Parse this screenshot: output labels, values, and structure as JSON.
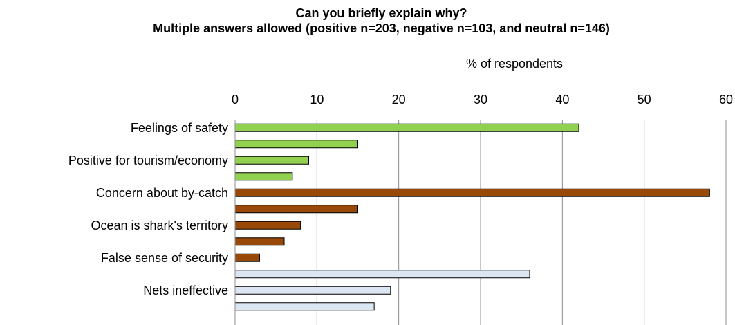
{
  "chart_data": {
    "type": "bar",
    "orientation": "horizontal",
    "title": "Can you briefly explain why?",
    "subtitle": "Multiple answers allowed (positive n=203, negative n=103, and neutral n=146)",
    "xlabel": "% of respondents",
    "xlim": [
      0,
      60
    ],
    "x_ticks": [
      "0",
      "10",
      "20",
      "30",
      "40",
      "50",
      "60"
    ],
    "axis_position": "top",
    "grid": true,
    "categories": [
      "Feelings of safety",
      "",
      "Positive for tourism/economy",
      "",
      "Concern about by-catch",
      "",
      "Ocean is shark's territory",
      "",
      "False sense of security",
      "",
      "Nets ineffective",
      ""
    ],
    "values": [
      42,
      15,
      9,
      7,
      58,
      15,
      8,
      6,
      3,
      36,
      19,
      17
    ],
    "bar_colors": [
      "#92d050",
      "#92d050",
      "#92d050",
      "#92d050",
      "#984807",
      "#984807",
      "#984807",
      "#984807",
      "#984807",
      "#dce6f2",
      "#dce6f2",
      "#dce6f2"
    ]
  }
}
